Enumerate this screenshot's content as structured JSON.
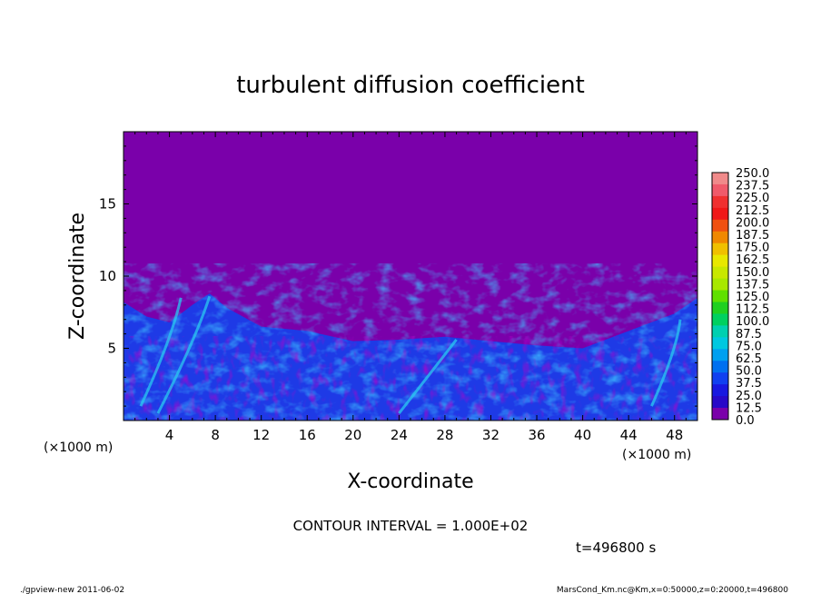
{
  "chart_data": {
    "type": "heatmap",
    "title": "turbulent diffusion coefficient",
    "xlabel": "X-coordinate",
    "ylabel": "Z-coordinate",
    "x_unit": "(×1000 m)",
    "y_unit": "(×1000 m)",
    "xlim": [
      0,
      50
    ],
    "ylim": [
      0,
      20
    ],
    "x_ticks": [
      "4",
      "8",
      "12",
      "16",
      "20",
      "24",
      "28",
      "32",
      "36",
      "40",
      "44",
      "48"
    ],
    "y_ticks": [
      "5",
      "10",
      "15"
    ],
    "colorbar_levels": [
      "250.0",
      "237.5",
      "225.0",
      "212.5",
      "200.0",
      "187.5",
      "175.0",
      "162.5",
      "150.0",
      "137.5",
      "125.0",
      "112.5",
      "100.0",
      "87.5",
      "75.0",
      "62.5",
      "50.0",
      "37.5",
      "25.0",
      "12.5",
      "0.0"
    ],
    "colorbar_colors": [
      "#f08a8a",
      "#f05a6a",
      "#f03030",
      "#f01818",
      "#f05010",
      "#f08800",
      "#f0c000",
      "#e8e800",
      "#c8e800",
      "#a8e800",
      "#60e000",
      "#20d020",
      "#00d060",
      "#00d0b0",
      "#00c8e0",
      "#00a0f0",
      "#0070f0",
      "#1040f0",
      "#1818e0",
      "#2808c8",
      "#7a00aa"
    ],
    "boundary_layer_top_km": [
      {
        "x": 0,
        "z": 8.2
      },
      {
        "x": 2,
        "z": 7.2
      },
      {
        "x": 4,
        "z": 6.8
      },
      {
        "x": 6,
        "z": 8.0
      },
      {
        "x": 7.5,
        "z": 8.8
      },
      {
        "x": 9,
        "z": 7.8
      },
      {
        "x": 12,
        "z": 6.5
      },
      {
        "x": 16,
        "z": 6.2
      },
      {
        "x": 20,
        "z": 5.5
      },
      {
        "x": 24,
        "z": 5.6
      },
      {
        "x": 28,
        "z": 5.8
      },
      {
        "x": 32,
        "z": 5.5
      },
      {
        "x": 36,
        "z": 5.2
      },
      {
        "x": 40,
        "z": 5.0
      },
      {
        "x": 44,
        "z": 6.2
      },
      {
        "x": 48,
        "z": 7.4
      },
      {
        "x": 50,
        "z": 8.5
      }
    ],
    "annotations": {
      "contour_interval": "CONTOUR INTERVAL = 1.000E+02",
      "time": "t=496800 s",
      "footer_left": "./gpview-new  2011-06-02",
      "footer_right": "MarsCond_Km.nc@Km,x=0:50000,z=0:20000,t=496800"
    }
  }
}
